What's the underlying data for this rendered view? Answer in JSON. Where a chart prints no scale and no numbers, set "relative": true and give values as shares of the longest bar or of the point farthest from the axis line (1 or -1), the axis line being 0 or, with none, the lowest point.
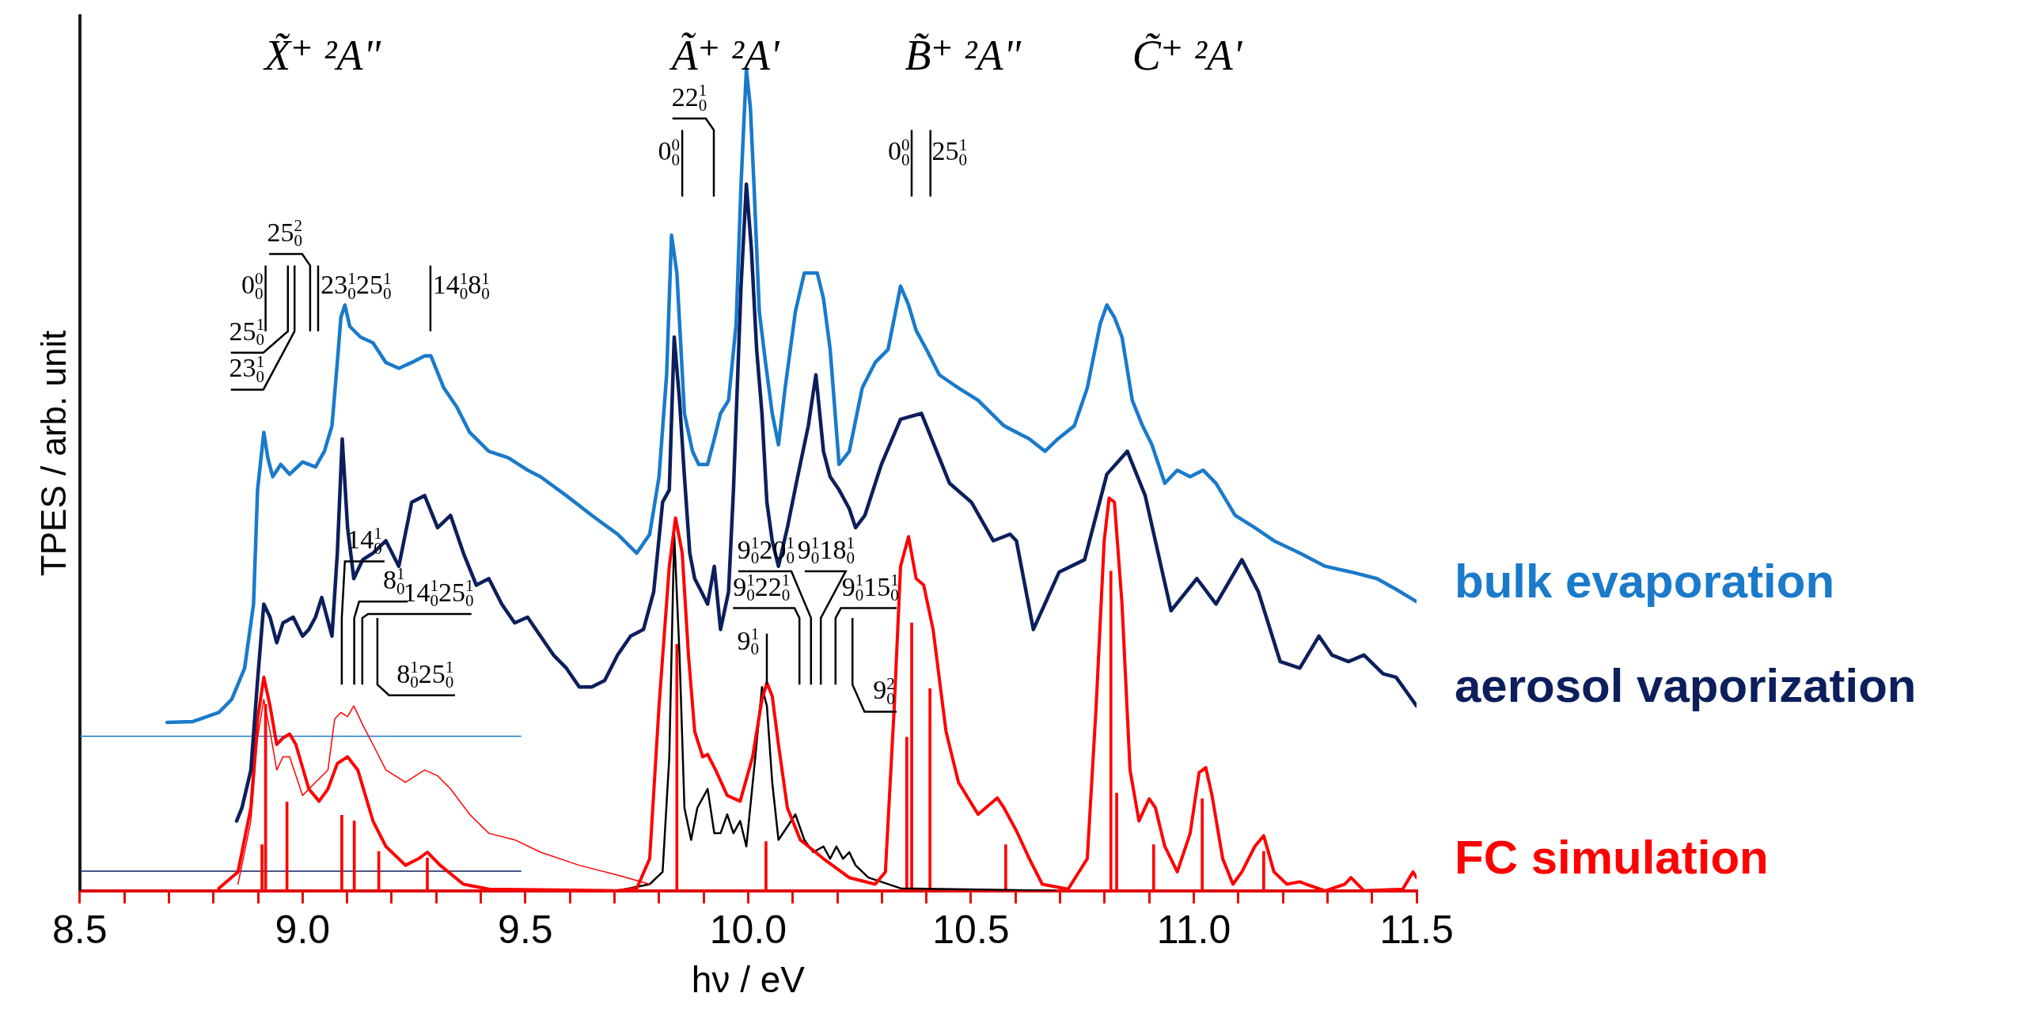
{
  "chart_data": {
    "type": "line",
    "relative": true,
    "xlabel": "hν / eV",
    "ylabel": "TPES / arb. unit",
    "xlim": [
      8.5,
      11.5
    ],
    "xticks": [
      8.5,
      {
        "value": 8.6,
        "label": null
      },
      {
        "value": 8.7,
        "label": null
      },
      {
        "value": 8.8,
        "label": null
      },
      {
        "value": 8.9,
        "label": null
      },
      {
        "value": 9,
        "label": "9.0"
      },
      {
        "value": 9.1,
        "label": null
      },
      {
        "value": 9.2,
        "label": null
      },
      {
        "value": 9.3,
        "label": null
      },
      {
        "value": 9.4,
        "label": null
      },
      9.5,
      {
        "value": 9.6,
        "label": null
      },
      {
        "value": 9.7,
        "label": null
      },
      {
        "value": 9.8,
        "label": null
      },
      {
        "value": 9.9,
        "label": null
      },
      {
        "value": 10,
        "label": "10.0"
      },
      {
        "value": 10.1,
        "label": null
      },
      {
        "value": 10.2,
        "label": null
      },
      {
        "value": 10.3,
        "label": null
      },
      {
        "value": 10.4,
        "label": null
      },
      10.5,
      {
        "value": 10.6,
        "label": null
      },
      {
        "value": 10.7,
        "label": null
      },
      {
        "value": 10.8,
        "label": null
      },
      {
        "value": 10.9,
        "label": null
      },
      {
        "value": 11,
        "label": "11.0"
      },
      {
        "value": 11.1,
        "label": null
      },
      {
        "value": 11.2,
        "label": null
      },
      {
        "value": 11.3,
        "label": null
      },
      {
        "value": 11.4,
        "label": null
      },
      11.5
    ],
    "series": [
      {
        "name": "bulk evaporation",
        "color": "#1a7acb",
        "x": [
          8.696,
          8.754,
          8.812,
          8.841,
          8.87,
          8.89,
          8.899,
          8.913,
          8.922,
          8.933,
          8.951,
          8.971,
          9.0,
          9.029,
          9.049,
          9.066,
          9.078,
          9.086,
          9.095,
          9.106,
          9.13,
          9.158,
          9.187,
          9.216,
          9.245,
          9.274,
          9.288,
          9.317,
          9.346,
          9.375,
          9.418,
          9.462,
          9.505,
          9.534,
          9.592,
          9.649,
          9.707,
          9.75,
          9.779,
          9.8,
          9.817,
          9.828,
          9.84,
          9.857,
          9.875,
          9.889,
          9.909,
          9.924,
          9.938,
          9.956,
          9.973,
          9.984,
          9.996,
          10.005,
          10.013,
          10.025,
          10.039,
          10.054,
          10.068,
          10.083,
          10.106,
          10.126,
          10.155,
          10.169,
          10.184,
          10.204,
          10.227,
          10.256,
          10.285,
          10.314,
          10.342,
          10.36,
          10.377,
          10.4,
          10.429,
          10.472,
          10.516,
          10.574,
          10.631,
          10.666,
          10.695,
          10.732,
          10.761,
          10.79,
          10.805,
          10.822,
          10.839,
          10.862,
          10.885,
          10.906,
          10.935,
          10.963,
          10.992,
          11.021,
          11.05,
          11.093,
          11.137,
          11.18,
          11.238,
          11.295,
          11.353,
          11.411,
          11.454,
          11.5
        ],
        "values": [
          0.205,
          0.206,
          0.217,
          0.233,
          0.271,
          0.349,
          0.488,
          0.558,
          0.527,
          0.504,
          0.519,
          0.507,
          0.522,
          0.516,
          0.535,
          0.566,
          0.643,
          0.698,
          0.713,
          0.687,
          0.674,
          0.667,
          0.643,
          0.636,
          0.643,
          0.651,
          0.651,
          0.612,
          0.589,
          0.558,
          0.535,
          0.527,
          0.512,
          0.504,
          0.481,
          0.457,
          0.434,
          0.411,
          0.434,
          0.504,
          0.628,
          0.798,
          0.752,
          0.581,
          0.535,
          0.519,
          0.519,
          0.55,
          0.581,
          0.597,
          0.69,
          0.86,
          1,
          0.953,
          0.86,
          0.705,
          0.643,
          0.581,
          0.543,
          0.612,
          0.705,
          0.752,
          0.752,
          0.721,
          0.659,
          0.519,
          0.535,
          0.612,
          0.643,
          0.659,
          0.736,
          0.713,
          0.682,
          0.659,
          0.628,
          0.612,
          0.597,
          0.566,
          0.55,
          0.535,
          0.55,
          0.566,
          0.612,
          0.69,
          0.713,
          0.698,
          0.674,
          0.597,
          0.566,
          0.543,
          0.496,
          0.512,
          0.504,
          0.512,
          0.496,
          0.457,
          0.442,
          0.426,
          0.411,
          0.395,
          0.388,
          0.38,
          0.367,
          0.352
        ]
      },
      {
        "name": "aerosol vaporization",
        "color": "#0c1f5c",
        "x": [
          8.852,
          8.864,
          8.884,
          8.899,
          8.913,
          8.927,
          8.942,
          8.956,
          8.979,
          9.0,
          9.014,
          9.029,
          9.043,
          9.066,
          9.078,
          9.089,
          9.101,
          9.115,
          9.135,
          9.158,
          9.187,
          9.216,
          9.245,
          9.274,
          9.303,
          9.332,
          9.361,
          9.39,
          9.418,
          9.447,
          9.476,
          9.505,
          9.534,
          9.563,
          9.592,
          9.621,
          9.649,
          9.678,
          9.707,
          9.736,
          9.765,
          9.788,
          9.808,
          9.823,
          9.834,
          9.846,
          9.857,
          9.869,
          9.88,
          9.895,
          9.909,
          9.924,
          9.938,
          9.956,
          9.967,
          9.984,
          9.996,
          10.007,
          10.019,
          10.031,
          10.042,
          10.054,
          10.068,
          10.088,
          10.111,
          10.135,
          10.152,
          10.169,
          10.184,
          10.204,
          10.227,
          10.241,
          10.262,
          10.299,
          10.342,
          10.389,
          10.452,
          10.501,
          10.55,
          10.588,
          10.602,
          10.64,
          10.698,
          10.755,
          10.805,
          10.851,
          10.891,
          10.949,
          11.007,
          11.05,
          11.108,
          11.145,
          11.194,
          11.238,
          11.281,
          11.31,
          11.347,
          11.382,
          11.425,
          11.454,
          11.5
        ],
        "values": [
          0.085,
          0.101,
          0.147,
          0.256,
          0.349,
          0.333,
          0.302,
          0.326,
          0.333,
          0.31,
          0.318,
          0.333,
          0.357,
          0.31,
          0.411,
          0.55,
          0.442,
          0.38,
          0.403,
          0.411,
          0.426,
          0.395,
          0.473,
          0.481,
          0.442,
          0.457,
          0.411,
          0.372,
          0.38,
          0.349,
          0.326,
          0.333,
          0.31,
          0.287,
          0.271,
          0.248,
          0.248,
          0.256,
          0.287,
          0.31,
          0.318,
          0.364,
          0.473,
          0.488,
          0.674,
          0.597,
          0.504,
          0.411,
          0.38,
          0.364,
          0.349,
          0.395,
          0.318,
          0.364,
          0.488,
          0.736,
          0.86,
          0.783,
          0.659,
          0.581,
          0.473,
          0.426,
          0.395,
          0.442,
          0.504,
          0.566,
          0.628,
          0.535,
          0.504,
          0.488,
          0.465,
          0.442,
          0.457,
          0.519,
          0.574,
          0.581,
          0.496,
          0.473,
          0.426,
          0.434,
          0.426,
          0.318,
          0.388,
          0.403,
          0.507,
          0.535,
          0.481,
          0.341,
          0.38,
          0.349,
          0.403,
          0.364,
          0.279,
          0.271,
          0.31,
          0.287,
          0.279,
          0.287,
          0.264,
          0.26,
          0.225
        ]
      },
      {
        "name": "FC simulation",
        "color": "#ff0000",
        "x": [
          8.812,
          8.855,
          8.884,
          8.899,
          8.913,
          8.927,
          8.942,
          8.956,
          8.971,
          8.985,
          9.014,
          9.037,
          9.057,
          9.078,
          9.101,
          9.124,
          9.158,
          9.187,
          9.231,
          9.26,
          9.28,
          9.309,
          9.361,
          9.418,
          9.707,
          9.75,
          9.779,
          9.8,
          9.823,
          9.837,
          9.852,
          9.866,
          9.88,
          9.898,
          9.909,
          9.927,
          9.953,
          9.982,
          10.01,
          10.031,
          10.042,
          10.054,
          10.068,
          10.088,
          10.117,
          10.169,
          10.227,
          10.285,
          10.308,
          10.328,
          10.342,
          10.36,
          10.377,
          10.394,
          10.415,
          10.444,
          10.472,
          10.516,
          10.559,
          10.574,
          10.602,
          10.631,
          10.66,
          10.718,
          10.761,
          10.781,
          10.799,
          10.81,
          10.822,
          10.839,
          10.857,
          10.877,
          10.9,
          10.914,
          10.935,
          10.963,
          10.992,
          11.012,
          11.027,
          11.041,
          11.065,
          11.088,
          11.108,
          11.137,
          11.157,
          11.18,
          11.209,
          11.238,
          11.252,
          11.295,
          11.339,
          11.353,
          11.382,
          11.469,
          11.492,
          11.5
        ],
        "values": [
          0.003,
          0.023,
          0.101,
          0.209,
          0.26,
          0.225,
          0.178,
          0.186,
          0.191,
          0.178,
          0.124,
          0.109,
          0.124,
          0.155,
          0.163,
          0.147,
          0.085,
          0.054,
          0.031,
          0.039,
          0.047,
          0.031,
          0.008,
          0.002,
          0,
          0.003,
          0.039,
          0.225,
          0.395,
          0.454,
          0.411,
          0.287,
          0.194,
          0.163,
          0.166,
          0.147,
          0.116,
          0.109,
          0.163,
          0.233,
          0.253,
          0.237,
          0.178,
          0.101,
          0.062,
          0.039,
          0.016,
          0.008,
          0.023,
          0.225,
          0.395,
          0.431,
          0.38,
          0.372,
          0.318,
          0.194,
          0.132,
          0.093,
          0.113,
          0.101,
          0.073,
          0.039,
          0.008,
          0.002,
          0.039,
          0.225,
          0.426,
          0.478,
          0.473,
          0.349,
          0.147,
          0.085,
          0.112,
          0.101,
          0.054,
          0.023,
          0.07,
          0.144,
          0.15,
          0.116,
          0.039,
          0.008,
          0.023,
          0.054,
          0.067,
          0.023,
          0.008,
          0.011,
          0.008,
          0,
          0.008,
          0.016,
          0,
          0.002,
          0.023,
          0.016
        ]
      },
      {
        "color": "#ff0000",
        "x": [
          8.855,
          8.884,
          8.899,
          8.913,
          8.927,
          8.942,
          8.956,
          8.971,
          9.0,
          9.029,
          9.057,
          9.072,
          9.086,
          9.101,
          9.115,
          9.135,
          9.158,
          9.187,
          9.231,
          9.274,
          9.303,
          9.332,
          9.375,
          9.418,
          9.476,
          9.534,
          9.621,
          9.707,
          9.779
        ],
        "values": [
          0.008,
          0.085,
          0.186,
          0.233,
          0.194,
          0.147,
          0.163,
          0.163,
          0.116,
          0.132,
          0.147,
          0.209,
          0.217,
          0.212,
          0.225,
          0.202,
          0.178,
          0.147,
          0.132,
          0.147,
          0.14,
          0.124,
          0.093,
          0.07,
          0.062,
          0.047,
          0.031,
          0.019,
          0.008
        ]
      },
      {
        "color": "#000000",
        "x": [
          9.707,
          9.779,
          9.808,
          9.823,
          9.834,
          9.846,
          9.857,
          9.872,
          9.886,
          9.909,
          9.924,
          9.938,
          9.953,
          9.967,
          9.982,
          9.996,
          10.016,
          10.031,
          10.042,
          10.054,
          10.068,
          10.088,
          10.106,
          10.126,
          10.146,
          10.169,
          10.184,
          10.198,
          10.213,
          10.227,
          10.241,
          10.27,
          10.342,
          10.689
        ],
        "values": [
          0,
          0.008,
          0.023,
          0.163,
          0.434,
          0.287,
          0.101,
          0.062,
          0.101,
          0.124,
          0.07,
          0.07,
          0.093,
          0.07,
          0.085,
          0.054,
          0.163,
          0.248,
          0.225,
          0.132,
          0.062,
          0.078,
          0.093,
          0.062,
          0.047,
          0.054,
          0.039,
          0.054,
          0.039,
          0.047,
          0.031,
          0.016,
          0.003,
          0
        ]
      },
      {
        "type": "bar",
        "color": "#ff0000",
        "x": [
          8.909,
          8.917,
          8.965,
          9.088,
          9.116,
          9.171,
          9.28,
          9.84,
          10.04,
          10.356,
          10.367,
          10.408,
          10.578,
          10.814,
          10.827,
          10.91,
          11.019,
          11.157
        ],
        "values": [
          0.056,
          0.227,
          0.108,
          0.092,
          0.085,
          0.048,
          0.04,
          0.3,
          0.06,
          0.187,
          0.326,
          0.246,
          0.056,
          0.389,
          0.119,
          0.056,
          0.112,
          0.048
        ]
      },
      {
        "color": "#1a7acb",
        "x": [
          8.5,
          9.49
        ],
        "values": [
          0.188,
          0.188
        ]
      },
      {
        "color": "#0c1f5c",
        "x": [
          8.5,
          9.49
        ],
        "values": [
          0.024,
          0.024
        ]
      }
    ],
    "annotations": [
      "X̃⁺ ²A\"",
      "Ã⁺ ²A'",
      "B̃⁺ ²A\"",
      "C̃⁺ ²A'",
      "0$_{0}$$^{0}$",
      "25$_{0}$$^{2}$",
      "23$_{0}$$^{1}$25$_{0}$$^{1}$",
      "25$_{0}$$^{1}$",
      "23$_{0}$$^{1}$",
      "14$_{0}$$^{1}$8$_{0}$$^{1}$",
      "0$_{0}$$^{0}$",
      "22$_{0}$$^{1}$",
      "0$_{0}$$^{0}$",
      "25$_{0}$$^{1}$",
      "14$_{0}$$^{1}$",
      "8$_{0}$$^{1}$",
      "14$_{0}$$^{1}$25$_{0}$$^{1}$",
      "8$_{0}$$^{1}$25$_{0}$$^{1}$",
      "9$_{0}$$^{1}$",
      "9$_{0}$$^{1}$20$_{0}$$^{1}$",
      "9$_{0}$$^{1}$22$_{0}$$^{1}$",
      "9$_{0}$$^{1}$18$_{0}$$^{1}$",
      "9$_{0}$$^{1}$15$_{0}$$^{1}$",
      "9$_{0}$$^{2}$"
    ]
  }
}
